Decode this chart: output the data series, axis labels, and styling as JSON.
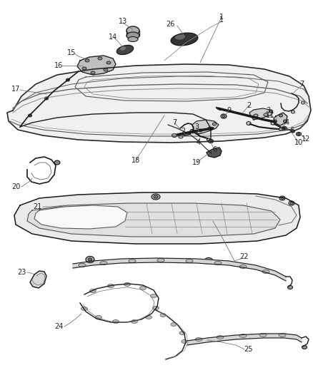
{
  "bg_color": "#ffffff",
  "fig_width": 4.38,
  "fig_height": 5.33,
  "dpi": 100,
  "label_fontsize": 7.0,
  "line_color": "#2a2a2a",
  "dark_color": "#1a1a1a",
  "gray_color": "#888888",
  "light_gray": "#cccccc",
  "label_color": "#222222"
}
